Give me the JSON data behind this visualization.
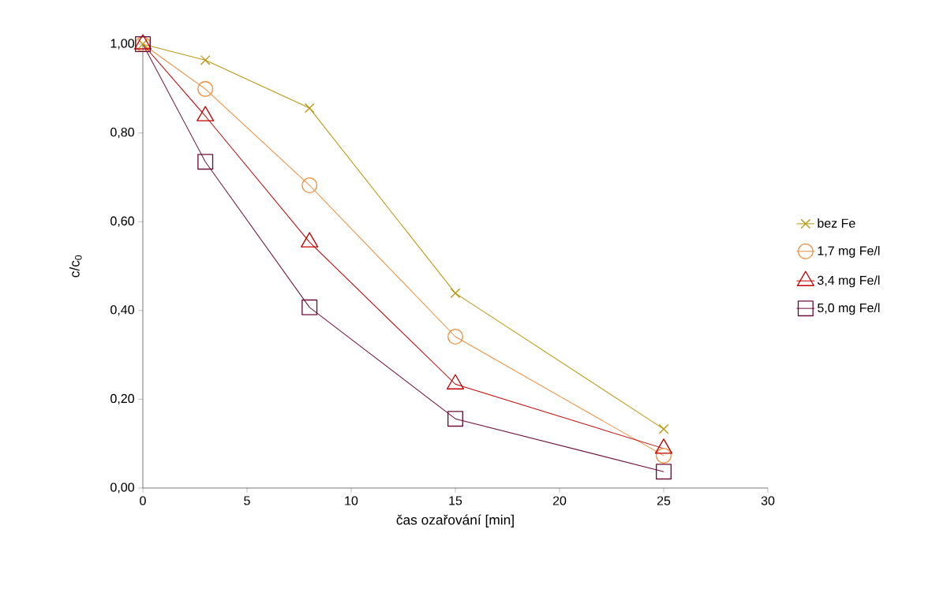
{
  "chart_data": {
    "type": "line",
    "xlabel": "čas ozařování [min]",
    "ylabel": "c/c$_{0}$",
    "x": [
      0,
      3,
      8,
      15,
      25
    ],
    "series": [
      {
        "name": "bez Fe",
        "color": "#b8960c",
        "marker": "cross",
        "values": [
          1.0,
          0.964,
          0.856,
          0.439,
          0.133
        ]
      },
      {
        "name": "1,7 mg Fe/l",
        "color": "#f08c3c",
        "marker": "circle",
        "values": [
          1.0,
          0.899,
          0.682,
          0.341,
          0.073
        ]
      },
      {
        "name": "3,4 mg Fe/l",
        "color": "#c00000",
        "marker": "triangle",
        "values": [
          1.0,
          0.838,
          0.554,
          0.234,
          0.089
        ]
      },
      {
        "name": "5,0 mg Fe/l",
        "color": "#6b0f3a",
        "marker": "square",
        "values": [
          1.0,
          0.735,
          0.407,
          0.156,
          0.037
        ]
      }
    ],
    "xlim": [
      0,
      30
    ],
    "xticks": [
      0,
      5,
      10,
      15,
      20,
      25,
      30
    ],
    "ylim": [
      0,
      1.0
    ],
    "yticks": [
      {
        "value": 0,
        "label": "0,00"
      },
      {
        "value": 0.2,
        "label": "0,20"
      },
      {
        "value": 0.4,
        "label": "0,40"
      },
      {
        "value": 0.6,
        "label": "0,60"
      },
      {
        "value": 0.8,
        "label": "0,80"
      },
      {
        "value": 1.0,
        "label": "1,00"
      }
    ],
    "grid": false,
    "legend": "right",
    "line_style": "solid"
  }
}
